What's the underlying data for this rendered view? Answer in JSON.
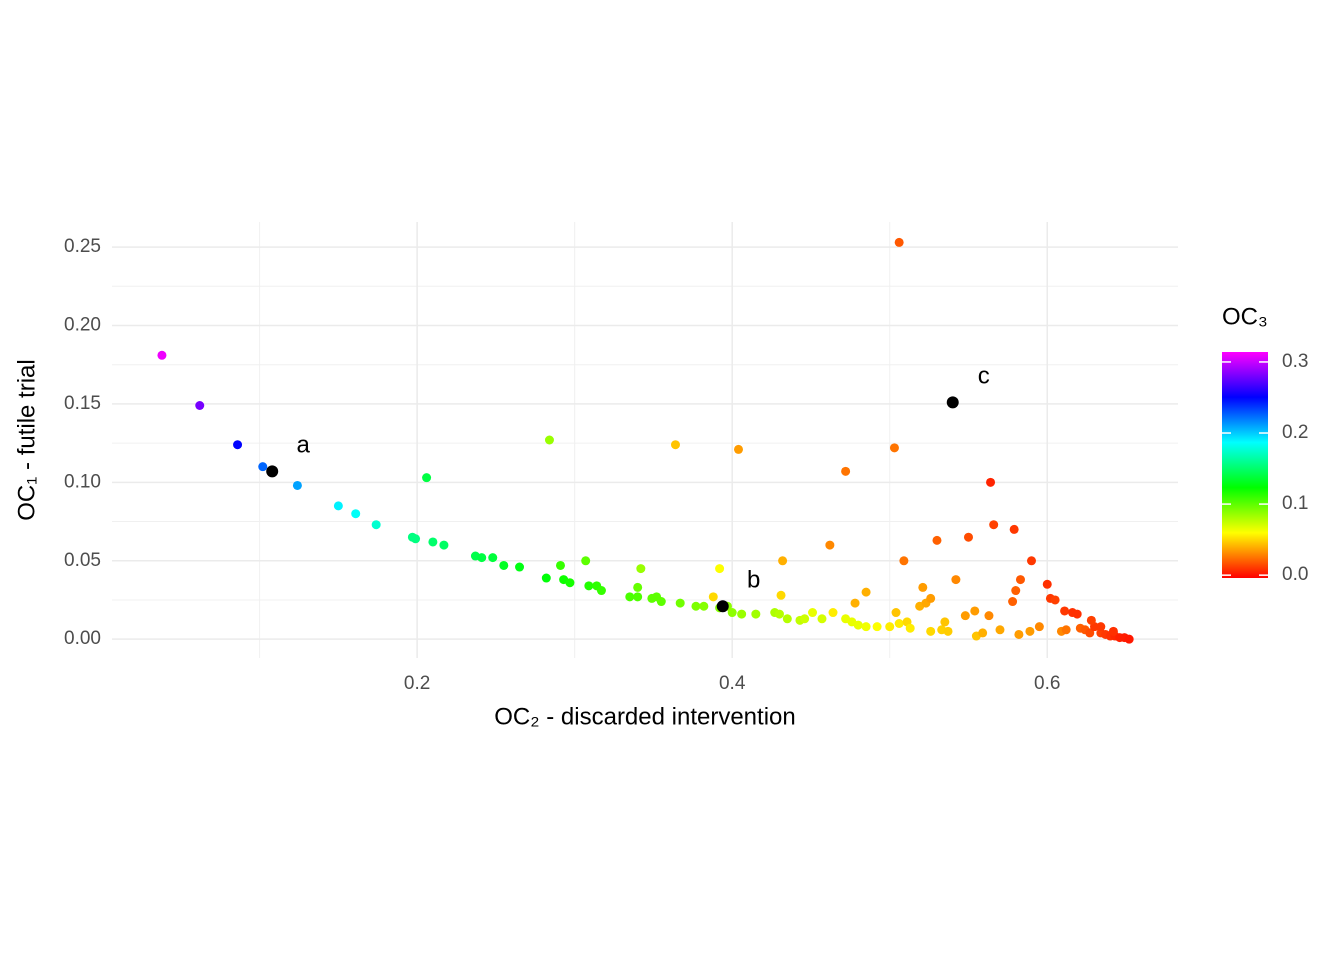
{
  "chart_data": {
    "type": "scatter",
    "xlabel": "OC₂ - discarded intervention",
    "ylabel": "OC₁ - futile trial",
    "xlim": [
      0.0063,
      0.683
    ],
    "ylim": [
      -0.012,
      0.266
    ],
    "xticks": [
      0.2,
      0.4,
      0.6
    ],
    "yticks": [
      {
        "value": 0,
        "label": "0.00"
      },
      0.05,
      {
        "value": 0.1,
        "label": "0.10"
      },
      0.15,
      {
        "value": 0.2,
        "label": "0.20"
      },
      0.25
    ],
    "xminor": [
      0.1,
      0.3,
      0.5
    ],
    "yminor": [
      0.025,
      0.075,
      0.125,
      0.175,
      0.225
    ],
    "grid": true,
    "colorbar": {
      "title": "OC₃",
      "zlim": [
        -0.004,
        0.314
      ],
      "ticks": [
        {
          "value": 0,
          "label": "0.0"
        },
        0.1,
        0.2,
        0.3
      ],
      "colors": [
        "#ff0000",
        "#ffff00",
        "#00ff00",
        "#00ffff",
        "#0000ff",
        "#ff00ff"
      ]
    },
    "points": {
      "x": [
        0.038,
        0.062,
        0.086,
        0.102,
        0.124,
        0.15,
        0.161,
        0.174,
        0.197,
        0.199,
        0.206,
        0.21,
        0.217,
        0.237,
        0.241,
        0.248,
        0.255,
        0.265,
        0.282,
        0.284,
        0.291,
        0.293,
        0.297,
        0.307,
        0.309,
        0.314,
        0.317,
        0.335,
        0.34,
        0.342,
        0.34,
        0.349,
        0.352,
        0.355,
        0.364,
        0.367,
        0.377,
        0.382,
        0.388,
        0.392,
        0.392,
        0.397,
        0.4,
        0.404,
        0.406,
        0.415,
        0.427,
        0.43,
        0.432,
        0.431,
        0.435,
        0.443,
        0.446,
        0.451,
        0.457,
        0.464,
        0.462,
        0.472,
        0.472,
        0.476,
        0.478,
        0.48,
        0.485,
        0.485,
        0.492,
        0.5,
        0.503,
        0.506,
        0.504,
        0.506,
        0.509,
        0.511,
        0.513,
        0.519,
        0.521,
        0.523,
        0.526,
        0.526,
        0.53,
        0.533,
        0.535,
        0.537,
        0.542,
        0.548,
        0.55,
        0.554,
        0.555,
        0.559,
        0.564,
        0.563,
        0.566,
        0.57,
        0.579,
        0.578,
        0.58,
        0.582,
        0.583,
        0.59,
        0.589,
        0.595,
        0.6,
        0.602,
        0.605,
        0.609,
        0.611,
        0.612,
        0.616,
        0.619,
        0.621,
        0.624,
        0.627,
        0.63,
        0.634,
        0.637,
        0.64,
        0.643,
        0.646,
        0.649,
        0.652,
        0.634,
        0.628,
        0.642
      ],
      "values": [
        0.181,
        0.149,
        0.124,
        0.11,
        0.098,
        0.085,
        0.08,
        0.073,
        0.065,
        0.064,
        0.103,
        0.062,
        0.06,
        0.053,
        0.052,
        0.052,
        0.047,
        0.046,
        0.039,
        0.127,
        0.047,
        0.038,
        0.036,
        0.05,
        0.034,
        0.034,
        0.031,
        0.027,
        0.033,
        0.045,
        0.027,
        0.026,
        0.027,
        0.024,
        0.124,
        0.023,
        0.021,
        0.021,
        0.027,
        0.045,
        0.02,
        0.021,
        0.017,
        0.121,
        0.016,
        0.016,
        0.017,
        0.016,
        0.05,
        0.028,
        0.013,
        0.012,
        0.013,
        0.017,
        0.013,
        0.017,
        0.06,
        0.107,
        0.013,
        0.011,
        0.023,
        0.009,
        0.03,
        0.008,
        0.008,
        0.008,
        0.122,
        0.253,
        0.017,
        0.01,
        0.05,
        0.011,
        0.007,
        0.021,
        0.033,
        0.023,
        0.026,
        0.005,
        0.063,
        0.006,
        0.011,
        0.005,
        0.038,
        0.015,
        0.065,
        0.018,
        0.002,
        0.004,
        0.1,
        0.015,
        0.073,
        0.006,
        0.07,
        0.024,
        0.031,
        0.003,
        0.038,
        0.05,
        0.005,
        0.008,
        0.035,
        0.026,
        0.025,
        0.005,
        0.018,
        0.006,
        0.017,
        0.016,
        0.007,
        0.006,
        0.004,
        0.008,
        0.004,
        0.003,
        0.002,
        0.002,
        0.001,
        0.001,
        0.0,
        0.008,
        0.012,
        0.005
      ],
      "z": [
        0.31,
        0.28,
        0.25,
        0.225,
        0.21,
        0.19,
        0.185,
        0.175,
        0.155,
        0.155,
        0.14,
        0.15,
        0.148,
        0.142,
        0.14,
        0.138,
        0.132,
        0.128,
        0.125,
        0.085,
        0.11,
        0.12,
        0.118,
        0.1,
        0.115,
        0.112,
        0.11,
        0.105,
        0.098,
        0.085,
        0.104,
        0.1,
        0.1,
        0.1,
        0.045,
        0.095,
        0.092,
        0.09,
        0.05,
        0.06,
        0.09,
        0.088,
        0.088,
        0.035,
        0.085,
        0.083,
        0.08,
        0.078,
        0.04,
        0.05,
        0.078,
        0.075,
        0.072,
        0.065,
        0.07,
        0.055,
        0.03,
        0.025,
        0.065,
        0.065,
        0.04,
        0.065,
        0.04,
        0.063,
        0.06,
        0.055,
        0.025,
        0.018,
        0.045,
        0.055,
        0.025,
        0.05,
        0.055,
        0.04,
        0.035,
        0.038,
        0.035,
        0.05,
        0.02,
        0.048,
        0.045,
        0.047,
        0.03,
        0.035,
        0.015,
        0.035,
        0.045,
        0.04,
        0.005,
        0.03,
        0.012,
        0.038,
        0.01,
        0.02,
        0.02,
        0.035,
        0.018,
        0.01,
        0.035,
        0.03,
        0.008,
        0.01,
        0.012,
        0.03,
        0.01,
        0.025,
        0.008,
        0.008,
        0.02,
        0.018,
        0.015,
        0.01,
        0.012,
        0.01,
        0.008,
        0.006,
        0.004,
        0.003,
        0.002,
        0.01,
        0.012,
        0.008
      ]
    },
    "highlights": {
      "x": [
        0.108,
        0.394,
        0.54
      ],
      "values": [
        0.107,
        0.021,
        0.151
      ],
      "labels": [
        "a",
        "b",
        "c"
      ],
      "color": "#000000"
    }
  }
}
